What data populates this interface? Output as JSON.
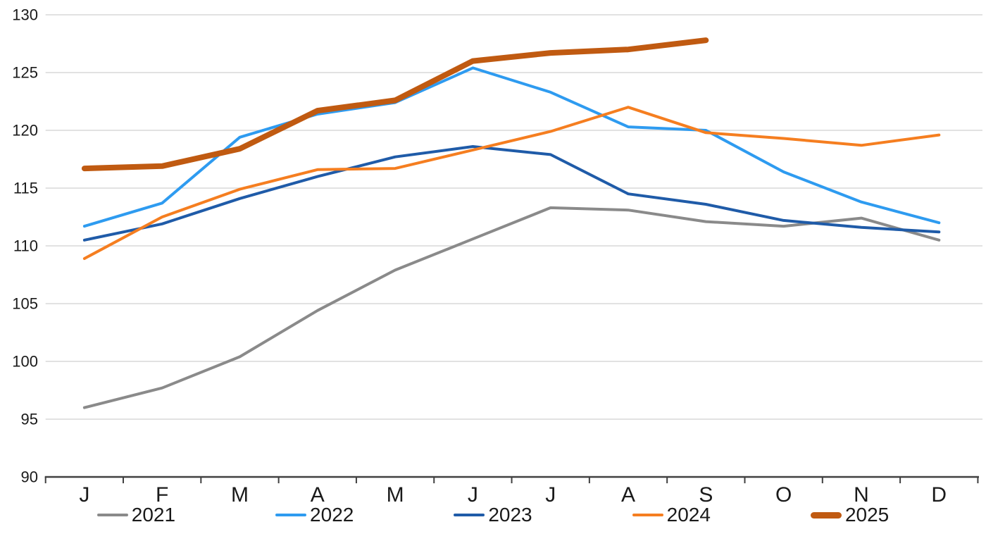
{
  "chart_data": {
    "type": "line",
    "title": "",
    "xlabel": "",
    "ylabel": "",
    "categories": [
      "J",
      "F",
      "M",
      "A",
      "M",
      "J",
      "J",
      "A",
      "S",
      "O",
      "N",
      "D"
    ],
    "y_axis": {
      "min": 90,
      "max": 130,
      "step": 5,
      "tick_labels": [
        "90",
        "95",
        "100",
        "105",
        "110",
        "115",
        "120",
        "125",
        "130"
      ]
    },
    "grid": true,
    "legend_position": "bottom",
    "series": [
      {
        "name": "2021",
        "color": "#8A8A8A",
        "stroke_width": 4,
        "values": [
          96.0,
          97.7,
          100.4,
          104.4,
          107.9,
          110.6,
          113.3,
          113.1,
          112.1,
          111.7,
          112.4,
          110.5
        ]
      },
      {
        "name": "2022",
        "color": "#2E9BF0",
        "stroke_width": 4,
        "values": [
          111.7,
          113.7,
          119.4,
          121.4,
          122.4,
          125.4,
          123.3,
          120.3,
          120.0,
          116.4,
          113.8,
          112.0
        ]
      },
      {
        "name": "2023",
        "color": "#1F5BA8",
        "stroke_width": 4,
        "values": [
          110.5,
          111.9,
          114.1,
          116.0,
          117.7,
          118.6,
          117.9,
          114.5,
          113.6,
          112.2,
          111.6,
          111.2
        ]
      },
      {
        "name": "2024",
        "color": "#F57E20",
        "stroke_width": 4,
        "values": [
          108.9,
          112.5,
          114.9,
          116.6,
          116.7,
          118.3,
          119.9,
          122.0,
          119.8,
          119.3,
          118.7,
          119.6
        ]
      },
      {
        "name": "2025",
        "color": "#C05A11",
        "stroke_width": 8,
        "values": [
          116.7,
          116.9,
          118.4,
          121.7,
          122.6,
          126.0,
          126.7,
          127.0,
          127.8
        ]
      }
    ]
  },
  "style_colors": {
    "gridline": "#D9D9D9",
    "axis": "#404040",
    "tick_text": "#1A1A1A",
    "month_text": "#1A1A1A",
    "background": "#FFFFFF"
  }
}
